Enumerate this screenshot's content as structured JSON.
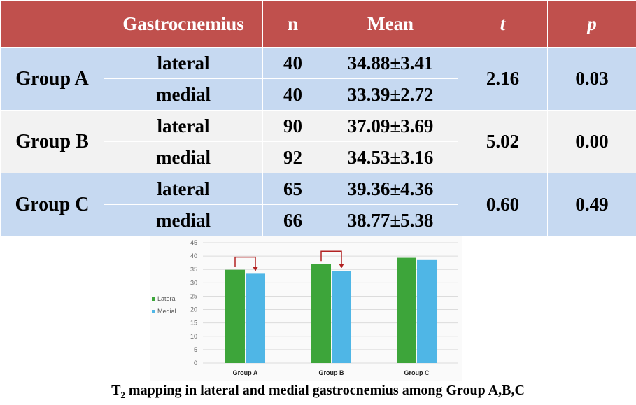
{
  "table": {
    "headers": [
      "",
      "Gastrocnemius",
      "n",
      "Mean",
      "t",
      "p"
    ],
    "groups": [
      {
        "name": "Group A",
        "t": "2.16",
        "p": "0.03",
        "rows": [
          {
            "muscle": "lateral",
            "n": "40",
            "mean": "34.88±3.41"
          },
          {
            "muscle": "medial",
            "n": "40",
            "mean": "33.39±2.72"
          }
        ]
      },
      {
        "name": "Group B",
        "t": "5.02",
        "p": "0.00",
        "rows": [
          {
            "muscle": "lateral",
            "n": "90",
            "mean": "37.09±3.69"
          },
          {
            "muscle": "medial",
            "n": "92",
            "mean": "34.53±3.16"
          }
        ]
      },
      {
        "name": "Group C",
        "t": "0.60",
        "p": "0.49",
        "rows": [
          {
            "muscle": "lateral",
            "n": "65",
            "mean": "39.36±4.36"
          },
          {
            "muscle": "medial",
            "n": "66",
            "mean": "38.77±5.38"
          }
        ]
      }
    ]
  },
  "chart_data": {
    "type": "bar",
    "categories": [
      "Group A",
      "Group B",
      "Group C"
    ],
    "series": [
      {
        "name": "Lateral",
        "values": [
          34.88,
          37.09,
          39.36
        ],
        "color": "#3da53a"
      },
      {
        "name": "Medial",
        "values": [
          33.39,
          34.53,
          38.77
        ],
        "color": "#4fb6e6"
      }
    ],
    "ylim": [
      0,
      45
    ],
    "yticks": [
      0,
      5,
      10,
      15,
      20,
      25,
      30,
      35,
      40,
      45
    ],
    "legend_position": "left",
    "annotations": [
      "arrow Group A lateral to medial",
      "arrow Group B lateral to medial"
    ],
    "arrow_color": "#b22222",
    "title": "",
    "xlabel": "",
    "ylabel": ""
  },
  "caption": {
    "pre": "T",
    "sub": "2",
    "post": " mapping in lateral and medial gastrocnemius among Group A,B,C"
  }
}
